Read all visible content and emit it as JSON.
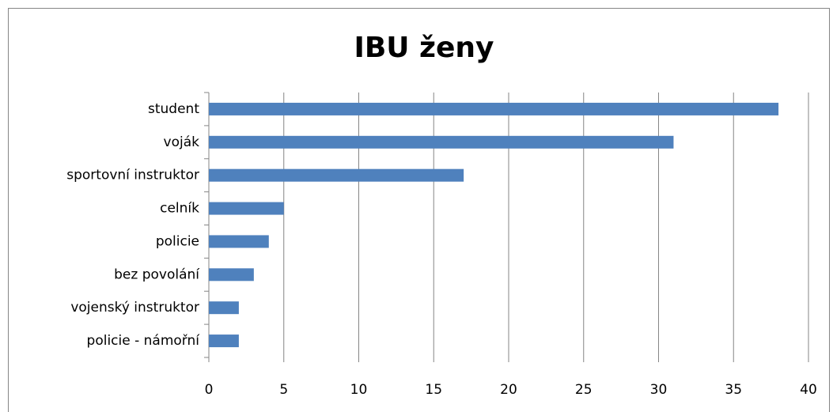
{
  "chart_data": {
    "type": "bar",
    "orientation": "horizontal",
    "title": "IBU ženy",
    "categories": [
      "student",
      "voják",
      "sportovní instruktor",
      "celník",
      "policie",
      "bez povolání",
      "vojenský instruktor",
      "policie - námořní"
    ],
    "values": [
      38,
      31,
      17,
      5,
      4,
      3,
      2,
      2
    ],
    "color": "#4f81bd",
    "xlim": [
      0,
      40
    ],
    "xticks": [
      0,
      5,
      10,
      15,
      20,
      25,
      30,
      35,
      40
    ],
    "grid": true
  }
}
